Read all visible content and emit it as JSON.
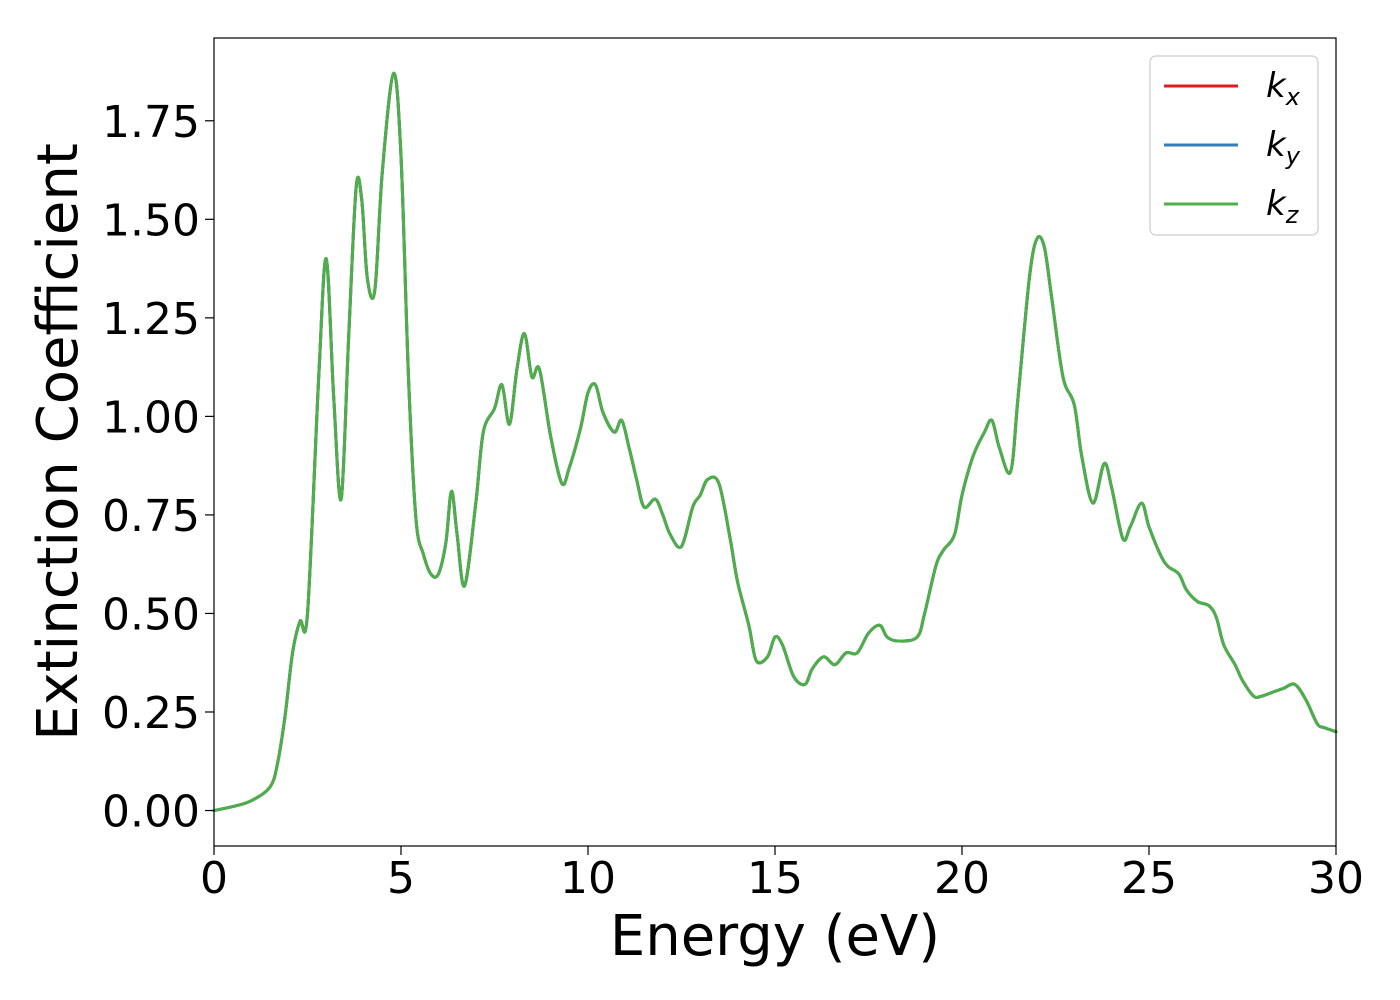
{
  "chart_data": {
    "type": "line",
    "title": "",
    "xlabel": "Energy (eV)",
    "ylabel": "Extinction Coefficient",
    "xlim": [
      0,
      30
    ],
    "ylim": [
      -0.09,
      1.96
    ],
    "xticks": [
      0,
      5,
      10,
      15,
      20,
      25,
      30
    ],
    "xtick_labels": [
      "0",
      "5",
      "10",
      "15",
      "20",
      "25",
      "30"
    ],
    "yticks": [
      0,
      0.25,
      0.5,
      0.75,
      1.0,
      1.25,
      1.5,
      1.75
    ],
    "ytick_labels": [
      "0.00",
      "0.25",
      "0.50",
      "0.75",
      "1.00",
      "1.25",
      "1.50",
      "1.75"
    ],
    "grid": false,
    "legend_position": "top-right",
    "x": [
      0,
      0.5,
      1.0,
      1.5,
      1.7,
      1.9,
      2.1,
      2.3,
      2.5,
      2.8,
      3.0,
      3.2,
      3.4,
      3.6,
      3.8,
      3.95,
      4.1,
      4.3,
      4.5,
      4.8,
      5.0,
      5.2,
      5.4,
      5.6,
      5.8,
      6.0,
      6.2,
      6.35,
      6.5,
      6.7,
      7.0,
      7.2,
      7.5,
      7.7,
      7.9,
      8.1,
      8.3,
      8.5,
      8.7,
      9.0,
      9.3,
      9.5,
      9.8,
      10.0,
      10.2,
      10.4,
      10.7,
      10.9,
      11.1,
      11.3,
      11.5,
      11.8,
      12.0,
      12.2,
      12.5,
      12.8,
      13.0,
      13.2,
      13.5,
      13.8,
      14.0,
      14.3,
      14.5,
      14.8,
      15.0,
      15.2,
      15.5,
      15.8,
      16.0,
      16.3,
      16.6,
      16.9,
      17.2,
      17.5,
      17.8,
      18.0,
      18.3,
      18.8,
      19.0,
      19.3,
      19.5,
      19.8,
      20.0,
      20.3,
      20.6,
      20.8,
      21.0,
      21.3,
      21.5,
      21.8,
      22.0,
      22.2,
      22.4,
      22.7,
      23.0,
      23.2,
      23.5,
      23.8,
      24.0,
      24.3,
      24.5,
      24.8,
      25.0,
      25.3,
      25.5,
      25.8,
      26.0,
      26.3,
      26.6,
      26.8,
      27.0,
      27.3,
      27.5,
      27.8,
      28.0,
      28.3,
      28.6,
      28.9,
      29.2,
      29.5,
      29.7,
      30.0
    ],
    "series": [
      {
        "name": "k_x",
        "legend_base": "k",
        "legend_sub": "x",
        "color": "#e41a1c",
        "values": [
          0.0,
          0.01,
          0.025,
          0.06,
          0.12,
          0.24,
          0.4,
          0.48,
          0.5,
          1.1,
          1.4,
          1.05,
          0.79,
          1.2,
          1.58,
          1.55,
          1.35,
          1.32,
          1.62,
          1.87,
          1.66,
          1.1,
          0.74,
          0.65,
          0.6,
          0.6,
          0.68,
          0.81,
          0.7,
          0.57,
          0.78,
          0.96,
          1.02,
          1.08,
          0.98,
          1.12,
          1.21,
          1.1,
          1.12,
          0.95,
          0.83,
          0.87,
          0.97,
          1.06,
          1.08,
          1.01,
          0.96,
          0.99,
          0.92,
          0.84,
          0.77,
          0.79,
          0.75,
          0.7,
          0.67,
          0.77,
          0.8,
          0.84,
          0.83,
          0.69,
          0.58,
          0.47,
          0.38,
          0.39,
          0.44,
          0.42,
          0.34,
          0.32,
          0.36,
          0.39,
          0.37,
          0.4,
          0.4,
          0.45,
          0.47,
          0.44,
          0.43,
          0.44,
          0.5,
          0.62,
          0.66,
          0.7,
          0.8,
          0.9,
          0.96,
          0.99,
          0.92,
          0.86,
          1.05,
          1.35,
          1.45,
          1.43,
          1.3,
          1.1,
          1.03,
          0.9,
          0.78,
          0.88,
          0.82,
          0.69,
          0.72,
          0.78,
          0.72,
          0.65,
          0.62,
          0.6,
          0.56,
          0.53,
          0.52,
          0.49,
          0.42,
          0.37,
          0.33,
          0.29,
          0.29,
          0.3,
          0.31,
          0.32,
          0.28,
          0.22,
          0.21,
          0.2
        ]
      },
      {
        "name": "k_y",
        "legend_base": "k",
        "legend_sub": "y",
        "color": "#377eb8",
        "values": [
          0.0,
          0.01,
          0.025,
          0.06,
          0.12,
          0.24,
          0.4,
          0.48,
          0.5,
          1.1,
          1.4,
          1.05,
          0.79,
          1.2,
          1.58,
          1.55,
          1.35,
          1.32,
          1.62,
          1.87,
          1.66,
          1.1,
          0.74,
          0.65,
          0.6,
          0.6,
          0.68,
          0.81,
          0.7,
          0.57,
          0.78,
          0.96,
          1.02,
          1.08,
          0.98,
          1.12,
          1.21,
          1.1,
          1.12,
          0.95,
          0.83,
          0.87,
          0.97,
          1.06,
          1.08,
          1.01,
          0.96,
          0.99,
          0.92,
          0.84,
          0.77,
          0.79,
          0.75,
          0.7,
          0.67,
          0.77,
          0.8,
          0.84,
          0.83,
          0.69,
          0.58,
          0.47,
          0.38,
          0.39,
          0.44,
          0.42,
          0.34,
          0.32,
          0.36,
          0.39,
          0.37,
          0.4,
          0.4,
          0.45,
          0.47,
          0.44,
          0.43,
          0.44,
          0.5,
          0.62,
          0.66,
          0.7,
          0.8,
          0.9,
          0.96,
          0.99,
          0.92,
          0.86,
          1.05,
          1.35,
          1.45,
          1.43,
          1.3,
          1.1,
          1.03,
          0.9,
          0.78,
          0.88,
          0.82,
          0.69,
          0.72,
          0.78,
          0.72,
          0.65,
          0.62,
          0.6,
          0.56,
          0.53,
          0.52,
          0.49,
          0.42,
          0.37,
          0.33,
          0.29,
          0.29,
          0.3,
          0.31,
          0.32,
          0.28,
          0.22,
          0.21,
          0.2
        ]
      },
      {
        "name": "k_z",
        "legend_base": "k",
        "legend_sub": "z",
        "color": "#4daf4a",
        "values": [
          0.0,
          0.01,
          0.025,
          0.06,
          0.12,
          0.24,
          0.4,
          0.48,
          0.5,
          1.1,
          1.4,
          1.05,
          0.79,
          1.2,
          1.58,
          1.55,
          1.35,
          1.32,
          1.62,
          1.87,
          1.66,
          1.1,
          0.74,
          0.65,
          0.6,
          0.6,
          0.68,
          0.81,
          0.7,
          0.57,
          0.78,
          0.96,
          1.02,
          1.08,
          0.98,
          1.12,
          1.21,
          1.1,
          1.12,
          0.95,
          0.83,
          0.87,
          0.97,
          1.06,
          1.08,
          1.01,
          0.96,
          0.99,
          0.92,
          0.84,
          0.77,
          0.79,
          0.75,
          0.7,
          0.67,
          0.77,
          0.8,
          0.84,
          0.83,
          0.69,
          0.58,
          0.47,
          0.38,
          0.39,
          0.44,
          0.42,
          0.34,
          0.32,
          0.36,
          0.39,
          0.37,
          0.4,
          0.4,
          0.45,
          0.47,
          0.44,
          0.43,
          0.44,
          0.5,
          0.62,
          0.66,
          0.7,
          0.8,
          0.9,
          0.96,
          0.99,
          0.92,
          0.86,
          1.05,
          1.35,
          1.45,
          1.43,
          1.3,
          1.1,
          1.03,
          0.9,
          0.78,
          0.88,
          0.82,
          0.69,
          0.72,
          0.78,
          0.72,
          0.65,
          0.62,
          0.6,
          0.56,
          0.53,
          0.52,
          0.49,
          0.42,
          0.37,
          0.33,
          0.29,
          0.29,
          0.3,
          0.31,
          0.32,
          0.28,
          0.22,
          0.21,
          0.2
        ]
      }
    ]
  }
}
